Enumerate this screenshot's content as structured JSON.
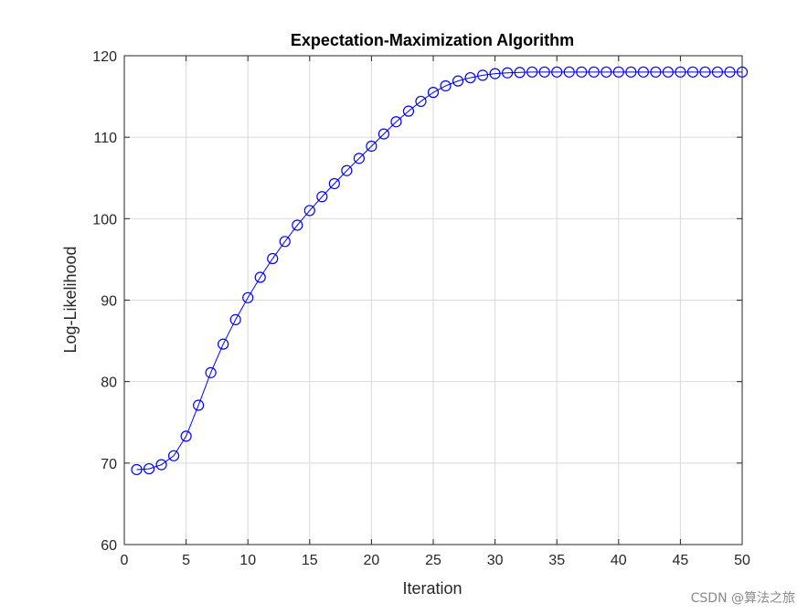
{
  "chart_data": {
    "type": "line",
    "title": "Expectation-Maximization Algorithm",
    "xlabel": "Iteration",
    "ylabel": "Log-Likelihood",
    "xlim": [
      0,
      50
    ],
    "ylim": [
      60,
      120
    ],
    "xticks": [
      0,
      5,
      10,
      15,
      20,
      25,
      30,
      35,
      40,
      45,
      50
    ],
    "yticks": [
      60,
      70,
      80,
      90,
      100,
      110,
      120
    ],
    "grid": true,
    "marker": "circle",
    "colors": {
      "series": "#0000ff",
      "grid": "#d9d9d9",
      "axis": "#262626"
    },
    "series": [
      {
        "x": [
          1,
          2,
          3,
          4,
          5,
          6,
          7,
          8,
          9,
          10,
          11,
          12,
          13,
          14,
          15,
          16,
          17,
          18,
          19,
          20,
          21,
          22,
          23,
          24,
          25,
          26,
          27,
          28,
          29,
          30,
          31,
          32,
          33,
          34,
          35,
          36,
          37,
          38,
          39,
          40,
          41,
          42,
          43,
          44,
          45,
          46,
          47,
          48,
          49,
          50
        ],
        "values": [
          69.2,
          69.3,
          69.8,
          70.9,
          73.3,
          77.1,
          81.1,
          84.6,
          87.6,
          90.3,
          92.8,
          95.1,
          97.2,
          99.2,
          101.0,
          102.7,
          104.3,
          105.9,
          107.4,
          108.9,
          110.4,
          111.9,
          113.2,
          114.4,
          115.5,
          116.3,
          116.9,
          117.3,
          117.6,
          117.8,
          117.9,
          117.95,
          118.0,
          118.0,
          118.0,
          118.0,
          118.0,
          118.0,
          118.0,
          118.0,
          118.0,
          118.0,
          118.0,
          118.0,
          118.0,
          118.0,
          118.0,
          118.0,
          118.0,
          118.0
        ]
      }
    ]
  },
  "watermark": "CSDN @算法之旅"
}
